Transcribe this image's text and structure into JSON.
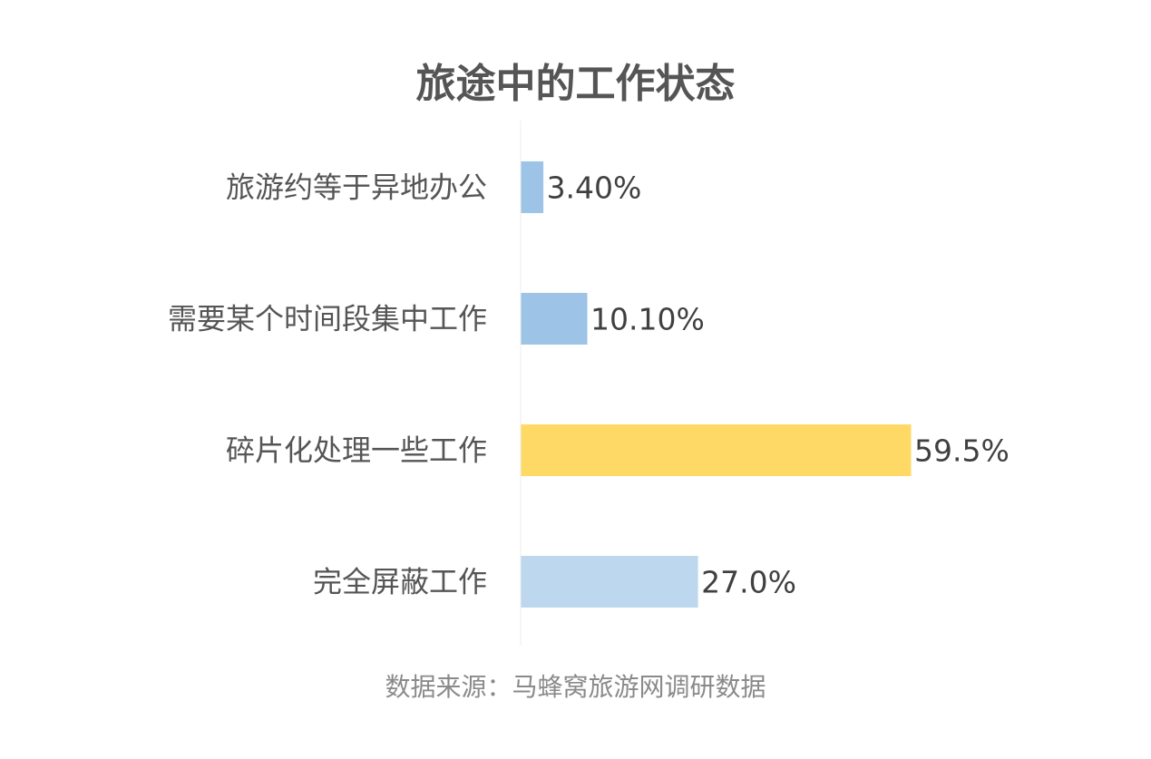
{
  "chart_data": {
    "type": "bar",
    "orientation": "horizontal",
    "title": "旅途中的工作状态",
    "categories": [
      "旅游约等于异地办公",
      "需要某个时间段集中工作",
      "碎片化处理一些工作",
      "完全屏蔽工作"
    ],
    "values": [
      3.4,
      10.1,
      59.5,
      27.0
    ],
    "data_labels": [
      "3.40%",
      "10.10%",
      "59.5%",
      "27.0%"
    ],
    "colors": [
      "#9DC3E6",
      "#9DC3E6",
      "#FFD966",
      "#BDD7EE"
    ],
    "xlim": [
      0,
      60
    ],
    "grid": false,
    "legend": "none",
    "xlabel": "",
    "ylabel": ""
  },
  "source": "数据来源：马蜂窝旅游网调研数据"
}
